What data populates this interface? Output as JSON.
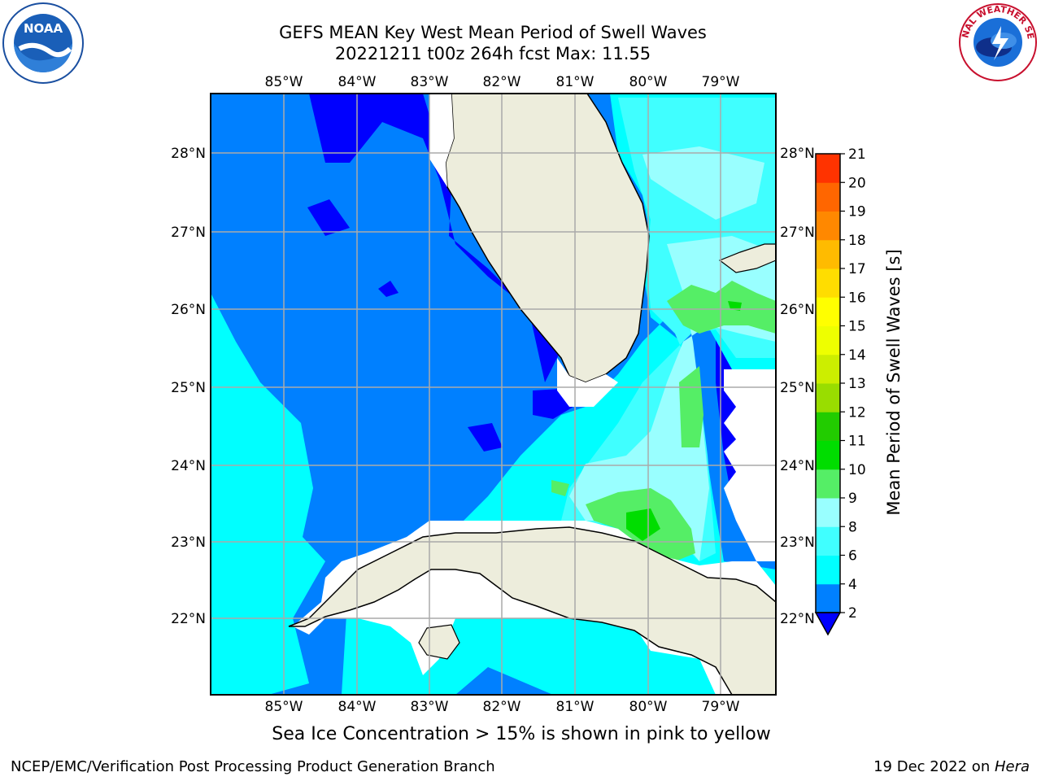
{
  "header": {
    "title_line1": "GEFS MEAN Key West Mean Period of Swell Waves",
    "title_line2": "20221211 t00z 264h fcst   Max: 11.55"
  },
  "map": {
    "lon_labels": [
      "85°W",
      "84°W",
      "83°W",
      "82°W",
      "81°W",
      "80°W",
      "79°W"
    ],
    "lat_labels": [
      "28°N",
      "27°N",
      "26°N",
      "25°N",
      "24°N",
      "23°N",
      "22°N"
    ],
    "land_color": "#ededdc",
    "ocean_colors": {
      "2-4": "#0080ff",
      "<2": "#0000ff",
      "4-6": "#00ffff",
      "6-8": "#40ffff",
      "8-9": "#99ffff",
      "9-10": "#55ee66"
    }
  },
  "colorbar": {
    "label": "Mean Period of Swell Waves [s]",
    "ticks": [
      "2",
      "4",
      "6",
      "8",
      "9",
      "10",
      "11",
      "12",
      "13",
      "14",
      "15",
      "16",
      "17",
      "18",
      "19",
      "20",
      "21"
    ],
    "colors": [
      "#0080ff",
      "#00ffff",
      "#40ffff",
      "#99ffff",
      "#55ee66",
      "#00dd00",
      "#22cc00",
      "#99dd00",
      "#ccee00",
      "#eeff00",
      "#ffff00",
      "#ffdd00",
      "#ffbb00",
      "#ff8800",
      "#ff6600",
      "#ff3300"
    ],
    "under_color": "#0000ff"
  },
  "caption": "Sea Ice Concentration > 15% is shown in pink to yellow",
  "footer": {
    "left": "NCEP/EMC/Verification Post Processing Product Generation Branch",
    "right_date": "19 Dec 2022 on ",
    "right_host": "Hera"
  },
  "logos": {
    "noaa_text": "NOAA",
    "nws_text": "NATIONAL WEATHER SERVICE"
  }
}
